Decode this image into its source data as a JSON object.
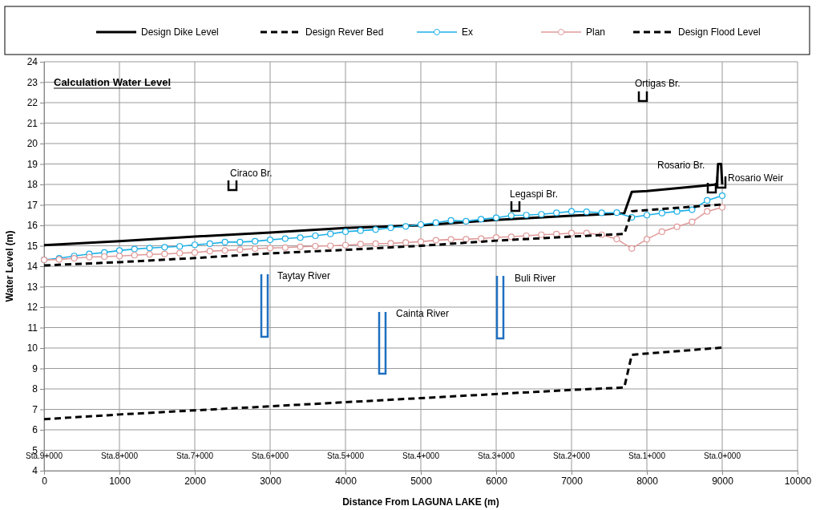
{
  "chart_data": {
    "type": "line",
    "title": "Calculation Water Level",
    "xlabel": "Distance From LAGUNA LAKE (m)",
    "ylabel": "Water Level (m)",
    "xlim": [
      0,
      10000
    ],
    "ylim": [
      4,
      24
    ],
    "xticks": [
      0,
      1000,
      2000,
      3000,
      4000,
      5000,
      6000,
      7000,
      8000,
      9000,
      10000
    ],
    "yticks": [
      4,
      5,
      6,
      7,
      8,
      9,
      10,
      11,
      12,
      13,
      14,
      15,
      16,
      17,
      18,
      19,
      20,
      21,
      22,
      23,
      24
    ],
    "grid": true,
    "legend": "top",
    "series": [
      {
        "name": "Design Dike Level",
        "color": "#000000",
        "line_style": "solid",
        "marker": "none",
        "x": [
          0,
          1000,
          2000,
          3000,
          4000,
          5000,
          6000,
          7000,
          7700,
          7800,
          8000,
          8930,
          8945,
          8985,
          9000
        ],
        "values": [
          15.03,
          15.23,
          15.45,
          15.65,
          15.87,
          16.0,
          16.26,
          16.47,
          16.59,
          17.64,
          17.68,
          18.0,
          19.0,
          19.0,
          18.0
        ]
      },
      {
        "name": "Design Rever Bed",
        "color": "#000000",
        "line_style": "dashed",
        "marker": "none",
        "x": [
          0,
          1000,
          2000,
          3000,
          4000,
          5000,
          6000,
          7000,
          7700,
          7800,
          9000
        ],
        "values": [
          6.52,
          6.75,
          6.95,
          7.15,
          7.35,
          7.55,
          7.75,
          7.95,
          8.07,
          9.67,
          10.02
        ]
      },
      {
        "name": "Ex",
        "color": "#1eb0e6",
        "line_style": "solid",
        "marker": "circle",
        "x": [
          0,
          200,
          400,
          600,
          800,
          1000,
          1200,
          1400,
          1600,
          1800,
          2000,
          2200,
          2400,
          2600,
          2800,
          3000,
          3200,
          3400,
          3600,
          3800,
          4000,
          4200,
          4400,
          4600,
          4800,
          5000,
          5200,
          5400,
          5600,
          5800,
          6000,
          6200,
          6400,
          6600,
          6800,
          7000,
          7200,
          7400,
          7600,
          7800,
          8000,
          8200,
          8400,
          8600,
          8800,
          9000
        ],
        "values": [
          14.31,
          14.39,
          14.5,
          14.6,
          14.67,
          14.77,
          14.84,
          14.89,
          14.93,
          14.97,
          15.05,
          15.1,
          15.18,
          15.18,
          15.22,
          15.29,
          15.35,
          15.4,
          15.49,
          15.58,
          15.69,
          15.74,
          15.79,
          15.88,
          15.95,
          16.04,
          16.13,
          16.24,
          16.2,
          16.3,
          16.37,
          16.48,
          16.5,
          16.54,
          16.61,
          16.68,
          16.66,
          16.61,
          16.62,
          16.39,
          16.5,
          16.6,
          16.68,
          16.76,
          17.22,
          17.45
        ]
      },
      {
        "name": "Plan",
        "color": "#e09a9a",
        "line_style": "solid",
        "marker": "circle",
        "x": [
          0,
          200,
          400,
          600,
          800,
          1000,
          1200,
          1400,
          1600,
          1800,
          2000,
          2200,
          2400,
          2600,
          2800,
          3000,
          3200,
          3400,
          3600,
          3800,
          4000,
          4200,
          4400,
          4600,
          4800,
          5000,
          5200,
          5400,
          5600,
          5800,
          6000,
          6200,
          6400,
          6600,
          6800,
          7000,
          7200,
          7400,
          7600,
          7800,
          8000,
          8200,
          8400,
          8600,
          8800,
          9000
        ],
        "values": [
          14.31,
          14.33,
          14.39,
          14.45,
          14.47,
          14.5,
          14.54,
          14.58,
          14.6,
          14.64,
          14.67,
          14.74,
          14.77,
          14.81,
          14.86,
          14.89,
          14.91,
          14.95,
          14.98,
          15.0,
          15.03,
          15.08,
          15.1,
          15.12,
          15.16,
          15.2,
          15.27,
          15.31,
          15.32,
          15.35,
          15.41,
          15.44,
          15.49,
          15.54,
          15.57,
          15.62,
          15.62,
          15.54,
          15.33,
          14.87,
          15.32,
          15.69,
          15.93,
          16.17,
          16.68,
          16.88
        ]
      },
      {
        "name": "Design Flood Level",
        "color": "#000000",
        "line_style": "dashed",
        "marker": "none",
        "x": [
          0,
          1000,
          2000,
          3000,
          4000,
          5000,
          6000,
          7000,
          7700,
          7800,
          9000
        ],
        "values": [
          14.04,
          14.2,
          14.4,
          14.63,
          14.8,
          15.0,
          15.25,
          15.45,
          15.58,
          16.69,
          17.02
        ]
      }
    ],
    "annotations": [
      "Ciraco Br.",
      "Legaspi Br.",
      "Ortigas Br.",
      "Rosario Br.",
      "Rosario Weir",
      "Taytay River",
      "Cainta River",
      "Buli River",
      "Sta.9+000",
      "Sta.8+000",
      "Sta.7+000",
      "Sta.6+000",
      "Sta.5+000",
      "Sta.4+000",
      "Sta.3+000",
      "Sta.2+000",
      "Sta.1+000",
      "Sta.0+000"
    ]
  }
}
